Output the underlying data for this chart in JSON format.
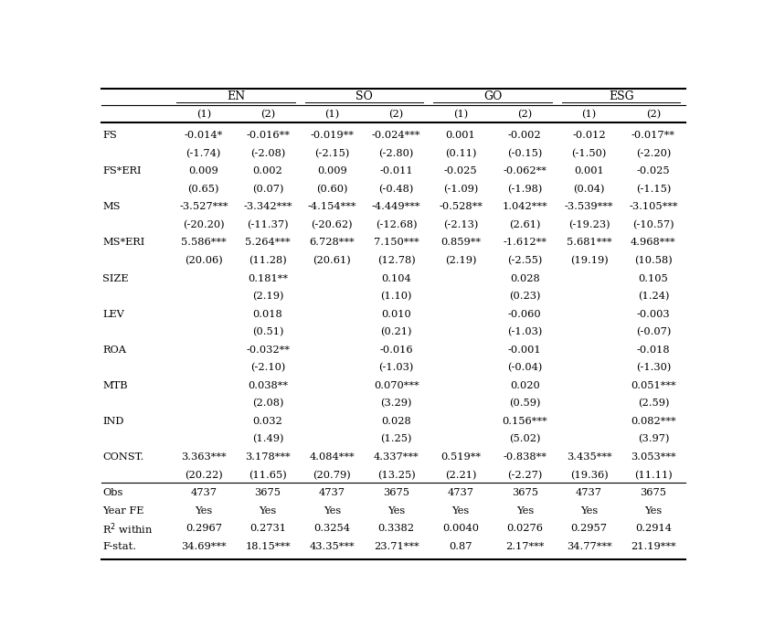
{
  "col_groups": [
    "EN",
    "SO",
    "GO",
    "ESG"
  ],
  "col_headers": [
    "(1)",
    "(2)",
    "(1)",
    "(2)",
    "(1)",
    "(2)",
    "(1)",
    "(2)"
  ],
  "table_data": [
    [
      "-0.014*",
      "-0.016**",
      "-0.019**",
      "-0.024***",
      "0.001",
      "-0.002",
      "-0.012",
      "-0.017**"
    ],
    [
      "(-1.74)",
      "(-2.08)",
      "(-2.15)",
      "(-2.80)",
      "(0.11)",
      "(-0.15)",
      "(-1.50)",
      "(-2.20)"
    ],
    [
      "0.009",
      "0.002",
      "0.009",
      "-0.011",
      "-0.025",
      "-0.062**",
      "0.001",
      "-0.025"
    ],
    [
      "(0.65)",
      "(0.07)",
      "(0.60)",
      "(-0.48)",
      "(-1.09)",
      "(-1.98)",
      "(0.04)",
      "(-1.15)"
    ],
    [
      "-3.527***",
      "-3.342***",
      "-4.154***",
      "-4.449***",
      "-0.528**",
      "1.042***",
      "-3.539***",
      "-3.105***"
    ],
    [
      "(-20.20)",
      "(-11.37)",
      "(-20.62)",
      "(-12.68)",
      "(-2.13)",
      "(2.61)",
      "(-19.23)",
      "(-10.57)"
    ],
    [
      "5.586***",
      "5.264***",
      "6.728***",
      "7.150***",
      "0.859**",
      "-1.612**",
      "5.681***",
      "4.968***"
    ],
    [
      "(20.06)",
      "(11.28)",
      "(20.61)",
      "(12.78)",
      "(2.19)",
      "(-2.55)",
      "(19.19)",
      "(10.58)"
    ],
    [
      "",
      "0.181**",
      "",
      "0.104",
      "",
      "0.028",
      "",
      "0.105"
    ],
    [
      "",
      "(2.19)",
      "",
      "(1.10)",
      "",
      "(0.23)",
      "",
      "(1.24)"
    ],
    [
      "",
      "0.018",
      "",
      "0.010",
      "",
      "-0.060",
      "",
      "-0.003"
    ],
    [
      "",
      "(0.51)",
      "",
      "(0.21)",
      "",
      "(-1.03)",
      "",
      "(-0.07)"
    ],
    [
      "",
      "-0.032**",
      "",
      "-0.016",
      "",
      "-0.001",
      "",
      "-0.018"
    ],
    [
      "",
      "(-2.10)",
      "",
      "(-1.03)",
      "",
      "(-0.04)",
      "",
      "(-1.30)"
    ],
    [
      "",
      "0.038**",
      "",
      "0.070***",
      "",
      "0.020",
      "",
      "0.051***"
    ],
    [
      "",
      "(2.08)",
      "",
      "(3.29)",
      "",
      "(0.59)",
      "",
      "(2.59)"
    ],
    [
      "",
      "0.032",
      "",
      "0.028",
      "",
      "0.156***",
      "",
      "0.082***"
    ],
    [
      "",
      "(1.49)",
      "",
      "(1.25)",
      "",
      "(5.02)",
      "",
      "(3.97)"
    ],
    [
      "3.363***",
      "3.178***",
      "4.084***",
      "4.337***",
      "0.519**",
      "-0.838**",
      "3.435***",
      "3.053***"
    ],
    [
      "(20.22)",
      "(11.65)",
      "(20.79)",
      "(13.25)",
      "(2.21)",
      "(-2.27)",
      "(19.36)",
      "(11.11)"
    ],
    [
      "4737",
      "3675",
      "4737",
      "3675",
      "4737",
      "3675",
      "4737",
      "3675"
    ],
    [
      "Yes",
      "Yes",
      "Yes",
      "Yes",
      "Yes",
      "Yes",
      "Yes",
      "Yes"
    ],
    [
      "0.2967",
      "0.2731",
      "0.3254",
      "0.3382",
      "0.0040",
      "0.0276",
      "0.2957",
      "0.2914"
    ],
    [
      "34.69***",
      "18.15***",
      "43.35***",
      "23.71***",
      "0.87",
      "2.17***",
      "34.77***",
      "21.19***"
    ]
  ],
  "row_label_map_keys": [
    0,
    2,
    4,
    6,
    8,
    10,
    12,
    14,
    16,
    18,
    20,
    21,
    22,
    23
  ],
  "row_label_map_vals": [
    "FS",
    "FS*ERI",
    "MS",
    "MS*ERI",
    "SIZE",
    "LEV",
    "ROA",
    "MTB",
    "IND",
    "CONST.",
    "Obs",
    "Year FE",
    "R² within",
    "F-stat."
  ],
  "figsize": [
    8.37,
    6.98
  ],
  "dpi": 100
}
